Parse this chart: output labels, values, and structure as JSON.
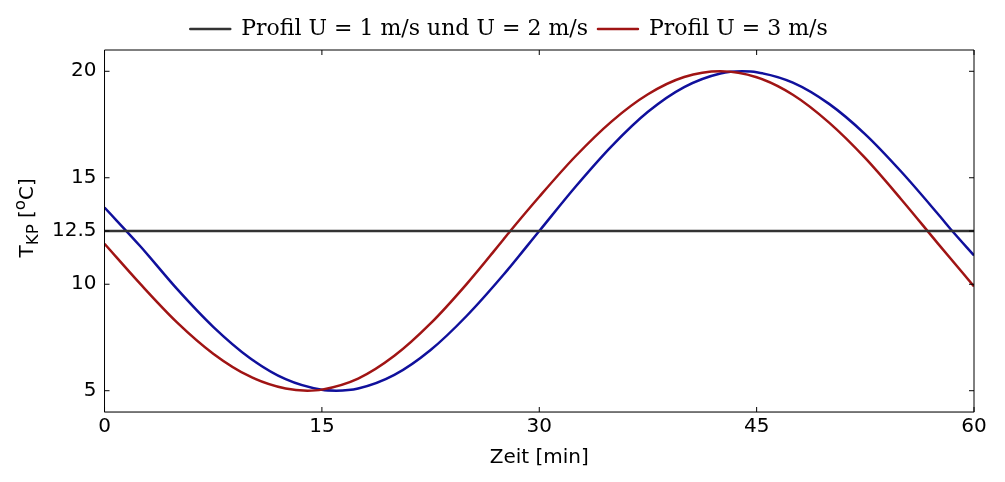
{
  "chart_data": {
    "type": "line",
    "xlabel": "Zeit [min]",
    "ylabel": "T$_{KP}$ [$^{o}$C]",
    "xlim": [
      0,
      60
    ],
    "xticks": [
      0,
      15,
      30,
      45,
      60
    ],
    "ylim": [
      4,
      21
    ],
    "yticks": [
      5,
      10,
      12.5,
      15,
      20
    ],
    "grid": false,
    "legend": "top",
    "marker": "none",
    "line_style": "solid",
    "series": [
      {
        "name": "Profil U = 1 m/s und U = 2 m/s",
        "color": "#333333",
        "x": [
          0,
          60
        ],
        "values": [
          12.5,
          12.5
        ]
      },
      {
        "name": "Profil U = 3 m/s",
        "color": "#a01414",
        "x": [
          0,
          2.5,
          5,
          7.5,
          10,
          12.5,
          14,
          15,
          17.5,
          20,
          22.5,
          25,
          27.5,
          28,
          30,
          32.5,
          35,
          37.5,
          40,
          42.5,
          45,
          47.5,
          50,
          52.5,
          55,
          57.5,
          60
        ],
        "values": [
          11.9,
          9.99,
          8.21,
          6.74,
          5.68,
          5.1,
          5,
          5.05,
          5.57,
          6.64,
          8.16,
          10.02,
          12.08,
          12.5,
          14.11,
          16.01,
          17.65,
          18.92,
          19.73,
          20,
          19.72,
          18.9,
          17.59,
          15.92,
          13.97,
          11.92,
          9.9
        ]
      },
      {
        "color": "#10109c",
        "x": [
          0,
          2.5,
          5,
          7.5,
          10,
          12.5,
          15,
          16,
          17.5,
          20,
          22.5,
          25,
          27.5,
          30,
          32.5,
          35,
          37.5,
          40,
          42.5,
          44,
          45,
          47.5,
          50,
          52.5,
          55,
          57.5,
          58.5,
          60
        ],
        "values": [
          13.6,
          11.76,
          9.78,
          8,
          6.55,
          5.54,
          5.04,
          5,
          5.1,
          5.74,
          6.91,
          8.52,
          10.42,
          12.5,
          14.58,
          16.49,
          18.1,
          19.26,
          19.9,
          20,
          19.96,
          19.47,
          18.47,
          17.04,
          15.27,
          13.31,
          12.5,
          11.35
        ]
      }
    ]
  }
}
